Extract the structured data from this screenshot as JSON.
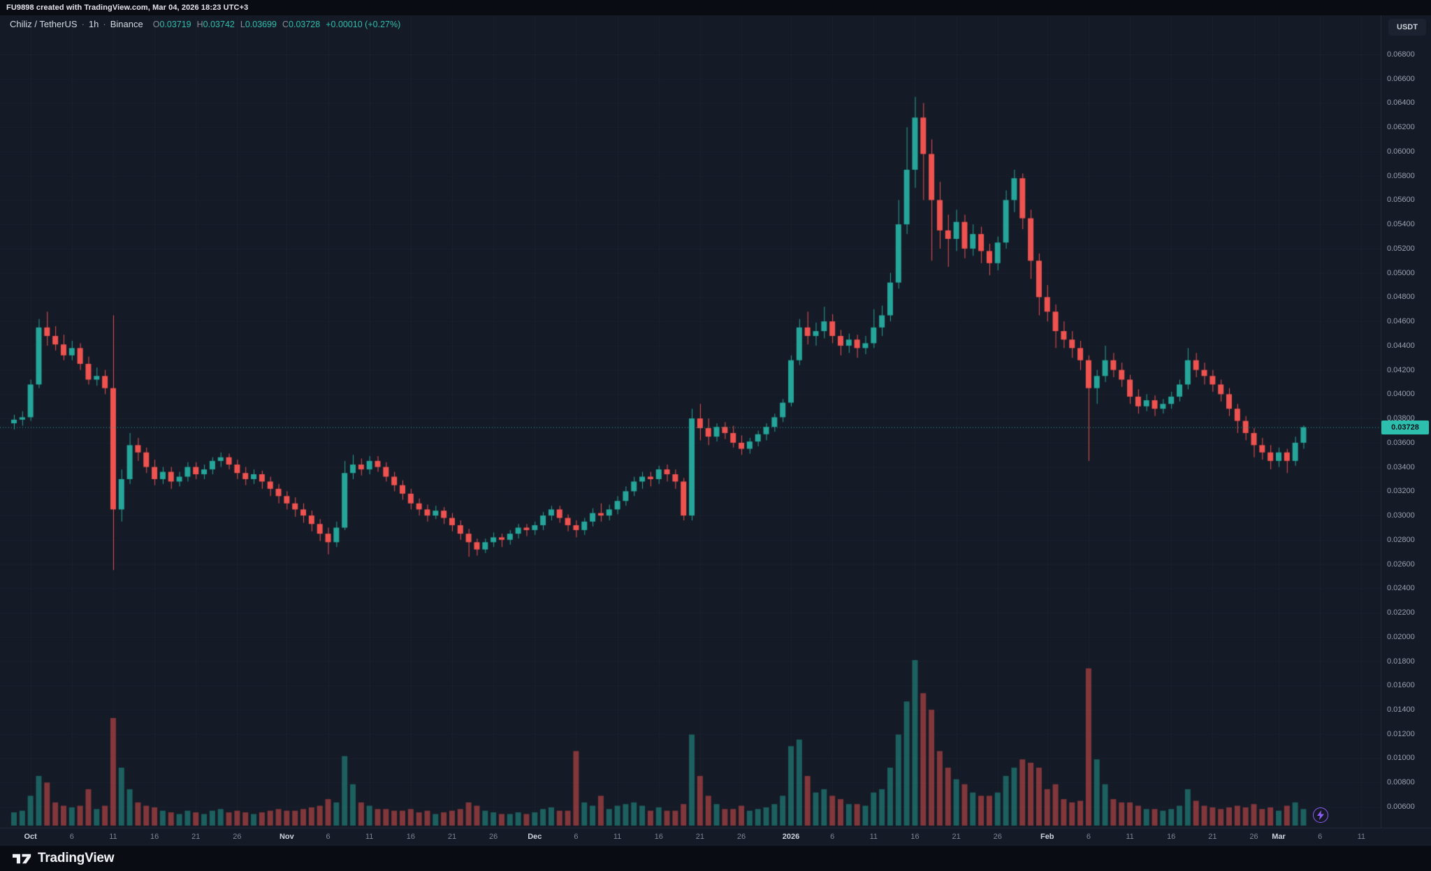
{
  "top_bar": {
    "attribution": "FU9898 created with TradingView.com, Mar 04, 2026 18:23 UTC+3"
  },
  "legend": {
    "symbol": "Chiliz / TetherUS",
    "separator": "·",
    "interval": "1h",
    "exchange": "Binance",
    "ohlc": {
      "o_label": "O",
      "o": "0.03719",
      "h_label": "H",
      "h": "0.03742",
      "l_label": "L",
      "l": "0.03699",
      "c_label": "C",
      "c": "0.03728"
    },
    "change": "+0.00010 (+0.27%)"
  },
  "price_scale": {
    "currency_button": "USDT"
  },
  "footer": {
    "brand": "TradingView"
  },
  "chart_data": {
    "type": "candlestick+volume",
    "symbol": "CHZ/USDT",
    "interval": "1h",
    "exchange": "Binance",
    "last_price": 0.03728,
    "last_price_label": "0.03728",
    "price_axis": {
      "max": 0.068,
      "min": 0.006,
      "step": 0.002,
      "decimals": 5
    },
    "colors": {
      "bg": "#141a26",
      "up": "#26a69a",
      "down": "#ef5350",
      "vol_up": "rgba(38,166,154,0.5)",
      "vol_down": "rgba(239,83,80,0.5)",
      "grid": "rgba(150,160,190,0.055)",
      "last_price_bg": "#2cbfad",
      "last_price_text": "#0b1118",
      "accent_purple": "#8e5cf7"
    },
    "time_axis": [
      {
        "label": "Oct",
        "i": 2,
        "major": true
      },
      {
        "label": "6",
        "i": 7
      },
      {
        "label": "11",
        "i": 12
      },
      {
        "label": "16",
        "i": 17
      },
      {
        "label": "21",
        "i": 22
      },
      {
        "label": "26",
        "i": 27
      },
      {
        "label": "Nov",
        "i": 33,
        "major": true
      },
      {
        "label": "6",
        "i": 38
      },
      {
        "label": "11",
        "i": 43
      },
      {
        "label": "16",
        "i": 48
      },
      {
        "label": "21",
        "i": 53
      },
      {
        "label": "26",
        "i": 58
      },
      {
        "label": "Dec",
        "i": 63,
        "major": true
      },
      {
        "label": "6",
        "i": 68
      },
      {
        "label": "11",
        "i": 73
      },
      {
        "label": "16",
        "i": 78
      },
      {
        "label": "21",
        "i": 83
      },
      {
        "label": "26",
        "i": 88
      },
      {
        "label": "2026",
        "i": 94,
        "major": true
      },
      {
        "label": "6",
        "i": 99
      },
      {
        "label": "11",
        "i": 104
      },
      {
        "label": "16",
        "i": 109
      },
      {
        "label": "21",
        "i": 114
      },
      {
        "label": "26",
        "i": 119
      },
      {
        "label": "Feb",
        "i": 125,
        "major": true
      },
      {
        "label": "6",
        "i": 130
      },
      {
        "label": "11",
        "i": 135
      },
      {
        "label": "16",
        "i": 140
      },
      {
        "label": "21",
        "i": 145
      },
      {
        "label": "26",
        "i": 150
      },
      {
        "label": "Mar",
        "i": 153,
        "major": true
      },
      {
        "label": "6",
        "i": 158
      },
      {
        "label": "11",
        "i": 163
      }
    ],
    "candles": [
      [
        0.0376,
        0.0383,
        0.0371,
        0.0379,
        8
      ],
      [
        0.0379,
        0.0386,
        0.0374,
        0.0381,
        9
      ],
      [
        0.0381,
        0.0412,
        0.0378,
        0.0408,
        18
      ],
      [
        0.0408,
        0.0462,
        0.0405,
        0.0455,
        30
      ],
      [
        0.0455,
        0.0468,
        0.044,
        0.0448,
        26
      ],
      [
        0.0448,
        0.0456,
        0.0436,
        0.0441,
        14
      ],
      [
        0.0441,
        0.0449,
        0.0428,
        0.0432,
        12
      ],
      [
        0.0432,
        0.0444,
        0.0428,
        0.0438,
        11
      ],
      [
        0.0438,
        0.0442,
        0.042,
        0.0425,
        12
      ],
      [
        0.0425,
        0.0431,
        0.0408,
        0.0412,
        22
      ],
      [
        0.0412,
        0.0422,
        0.0407,
        0.0415,
        10
      ],
      [
        0.0415,
        0.042,
        0.04,
        0.0405,
        12
      ],
      [
        0.0405,
        0.0465,
        0.0255,
        0.0305,
        65
      ],
      [
        0.0305,
        0.0338,
        0.0295,
        0.033,
        35
      ],
      [
        0.033,
        0.0368,
        0.0326,
        0.0358,
        22
      ],
      [
        0.0358,
        0.0364,
        0.0345,
        0.0352,
        14
      ],
      [
        0.0352,
        0.0356,
        0.0335,
        0.034,
        12
      ],
      [
        0.034,
        0.0346,
        0.0325,
        0.033,
        11
      ],
      [
        0.033,
        0.034,
        0.0326,
        0.0336,
        9
      ],
      [
        0.0336,
        0.034,
        0.0322,
        0.0328,
        8
      ],
      [
        0.0328,
        0.0336,
        0.0324,
        0.0332,
        7
      ],
      [
        0.0332,
        0.0344,
        0.0328,
        0.034,
        9
      ],
      [
        0.034,
        0.0344,
        0.033,
        0.0334,
        8
      ],
      [
        0.0334,
        0.0342,
        0.033,
        0.0338,
        7
      ],
      [
        0.0338,
        0.0348,
        0.0334,
        0.0345,
        9
      ],
      [
        0.0345,
        0.0352,
        0.034,
        0.0348,
        10
      ],
      [
        0.0348,
        0.0351,
        0.0338,
        0.0342,
        8
      ],
      [
        0.0342,
        0.0346,
        0.033,
        0.0335,
        9
      ],
      [
        0.0335,
        0.034,
        0.0325,
        0.033,
        8
      ],
      [
        0.033,
        0.0338,
        0.0326,
        0.0334,
        7
      ],
      [
        0.0334,
        0.0337,
        0.0322,
        0.0328,
        8
      ],
      [
        0.0328,
        0.0332,
        0.0316,
        0.0322,
        9
      ],
      [
        0.0322,
        0.0326,
        0.031,
        0.0316,
        10
      ],
      [
        0.0316,
        0.032,
        0.0305,
        0.031,
        9
      ],
      [
        0.031,
        0.0315,
        0.0299,
        0.0305,
        9
      ],
      [
        0.0305,
        0.031,
        0.0294,
        0.03,
        10
      ],
      [
        0.03,
        0.0304,
        0.0287,
        0.0293,
        11
      ],
      [
        0.0293,
        0.0297,
        0.0279,
        0.0285,
        12
      ],
      [
        0.0285,
        0.029,
        0.0268,
        0.0278,
        16
      ],
      [
        0.0278,
        0.0295,
        0.0274,
        0.029,
        14
      ],
      [
        0.029,
        0.0345,
        0.0288,
        0.0335,
        42
      ],
      [
        0.0335,
        0.035,
        0.033,
        0.0342,
        25
      ],
      [
        0.0342,
        0.0347,
        0.0333,
        0.0338,
        14
      ],
      [
        0.0338,
        0.0349,
        0.0334,
        0.0345,
        12
      ],
      [
        0.0345,
        0.0349,
        0.0336,
        0.034,
        10
      ],
      [
        0.034,
        0.0344,
        0.0328,
        0.0332,
        10
      ],
      [
        0.0332,
        0.0336,
        0.032,
        0.0325,
        9
      ],
      [
        0.0325,
        0.0329,
        0.0313,
        0.0318,
        9
      ],
      [
        0.0318,
        0.0322,
        0.0305,
        0.031,
        10
      ],
      [
        0.031,
        0.0314,
        0.03,
        0.0305,
        8
      ],
      [
        0.0305,
        0.0309,
        0.0295,
        0.03,
        9
      ],
      [
        0.03,
        0.0308,
        0.0297,
        0.0304,
        7
      ],
      [
        0.0304,
        0.0307,
        0.0293,
        0.0298,
        8
      ],
      [
        0.0298,
        0.0302,
        0.0287,
        0.0292,
        9
      ],
      [
        0.0292,
        0.0296,
        0.028,
        0.0285,
        10
      ],
      [
        0.0285,
        0.0289,
        0.0266,
        0.0278,
        14
      ],
      [
        0.0278,
        0.0281,
        0.0267,
        0.0272,
        12
      ],
      [
        0.0272,
        0.0281,
        0.0269,
        0.0278,
        9
      ],
      [
        0.0278,
        0.0286,
        0.0274,
        0.0282,
        8
      ],
      [
        0.0282,
        0.0285,
        0.0274,
        0.028,
        7
      ],
      [
        0.028,
        0.0288,
        0.0276,
        0.0285,
        7
      ],
      [
        0.0285,
        0.0293,
        0.0281,
        0.029,
        8
      ],
      [
        0.029,
        0.0293,
        0.0283,
        0.0288,
        7
      ],
      [
        0.0288,
        0.0295,
        0.0284,
        0.0292,
        8
      ],
      [
        0.0292,
        0.0303,
        0.0288,
        0.03,
        10
      ],
      [
        0.03,
        0.0308,
        0.0296,
        0.0305,
        11
      ],
      [
        0.0305,
        0.0308,
        0.0294,
        0.0298,
        9
      ],
      [
        0.0298,
        0.0301,
        0.0287,
        0.0292,
        9
      ],
      [
        0.0292,
        0.0296,
        0.0282,
        0.0288,
        45
      ],
      [
        0.0288,
        0.0298,
        0.0284,
        0.0295,
        14
      ],
      [
        0.0295,
        0.0306,
        0.0291,
        0.0302,
        12
      ],
      [
        0.0302,
        0.031,
        0.0295,
        0.03,
        18
      ],
      [
        0.03,
        0.0309,
        0.0296,
        0.0305,
        10
      ],
      [
        0.0305,
        0.0316,
        0.0301,
        0.0312,
        12
      ],
      [
        0.0312,
        0.0324,
        0.0308,
        0.032,
        13
      ],
      [
        0.032,
        0.0332,
        0.0316,
        0.0328,
        14
      ],
      [
        0.0328,
        0.0336,
        0.0322,
        0.0332,
        12
      ],
      [
        0.0332,
        0.0336,
        0.0324,
        0.033,
        9
      ],
      [
        0.033,
        0.0341,
        0.0326,
        0.0338,
        11
      ],
      [
        0.0338,
        0.0342,
        0.0328,
        0.0334,
        9
      ],
      [
        0.0334,
        0.0338,
        0.0322,
        0.0328,
        9
      ],
      [
        0.0328,
        0.0331,
        0.0296,
        0.03,
        13
      ],
      [
        0.03,
        0.0388,
        0.0296,
        0.038,
        55
      ],
      [
        0.038,
        0.0392,
        0.0362,
        0.0372,
        30
      ],
      [
        0.0372,
        0.038,
        0.0358,
        0.0365,
        18
      ],
      [
        0.0365,
        0.0376,
        0.0361,
        0.0373,
        13
      ],
      [
        0.0373,
        0.0377,
        0.0363,
        0.0368,
        10
      ],
      [
        0.0368,
        0.0374,
        0.0356,
        0.036,
        10
      ],
      [
        0.036,
        0.0366,
        0.035,
        0.0355,
        12
      ],
      [
        0.0355,
        0.0364,
        0.0351,
        0.0361,
        9
      ],
      [
        0.0361,
        0.037,
        0.0357,
        0.0367,
        10
      ],
      [
        0.0367,
        0.0376,
        0.0362,
        0.0373,
        11
      ],
      [
        0.0373,
        0.0384,
        0.0369,
        0.0381,
        13
      ],
      [
        0.0381,
        0.0396,
        0.0377,
        0.0393,
        18
      ],
      [
        0.0393,
        0.0432,
        0.039,
        0.0428,
        48
      ],
      [
        0.0428,
        0.0462,
        0.0424,
        0.0455,
        52
      ],
      [
        0.0455,
        0.0468,
        0.0441,
        0.0448,
        30
      ],
      [
        0.0448,
        0.0459,
        0.044,
        0.0452,
        20
      ],
      [
        0.0452,
        0.0472,
        0.0446,
        0.046,
        22
      ],
      [
        0.046,
        0.0466,
        0.0442,
        0.0448,
        18
      ],
      [
        0.0448,
        0.0453,
        0.0432,
        0.044,
        16
      ],
      [
        0.044,
        0.045,
        0.0434,
        0.0445,
        13
      ],
      [
        0.0445,
        0.0449,
        0.043,
        0.0438,
        13
      ],
      [
        0.0438,
        0.0448,
        0.0433,
        0.0442,
        12
      ],
      [
        0.0442,
        0.047,
        0.0438,
        0.0455,
        20
      ],
      [
        0.0455,
        0.0473,
        0.0448,
        0.0465,
        22
      ],
      [
        0.0465,
        0.05,
        0.046,
        0.0492,
        35
      ],
      [
        0.0492,
        0.056,
        0.0487,
        0.054,
        55
      ],
      [
        0.054,
        0.062,
        0.0532,
        0.0585,
        75
      ],
      [
        0.0585,
        0.0645,
        0.057,
        0.0628,
        100
      ],
      [
        0.0628,
        0.064,
        0.056,
        0.0598,
        80
      ],
      [
        0.0598,
        0.061,
        0.051,
        0.056,
        70
      ],
      [
        0.056,
        0.0575,
        0.052,
        0.0535,
        45
      ],
      [
        0.0535,
        0.0548,
        0.0505,
        0.0528,
        35
      ],
      [
        0.0528,
        0.0552,
        0.0518,
        0.0542,
        28
      ],
      [
        0.0542,
        0.0548,
        0.0512,
        0.052,
        25
      ],
      [
        0.052,
        0.054,
        0.0514,
        0.0532,
        20
      ],
      [
        0.0532,
        0.0538,
        0.0508,
        0.0518,
        18
      ],
      [
        0.0518,
        0.0524,
        0.0498,
        0.0508,
        18
      ],
      [
        0.0508,
        0.053,
        0.0502,
        0.0525,
        20
      ],
      [
        0.0525,
        0.0568,
        0.052,
        0.056,
        30
      ],
      [
        0.056,
        0.0585,
        0.055,
        0.0578,
        35
      ],
      [
        0.0578,
        0.0582,
        0.0536,
        0.0545,
        40
      ],
      [
        0.0545,
        0.0552,
        0.0495,
        0.051,
        38
      ],
      [
        0.051,
        0.0516,
        0.0465,
        0.048,
        35
      ],
      [
        0.048,
        0.049,
        0.046,
        0.0468,
        22
      ],
      [
        0.0468,
        0.0474,
        0.0438,
        0.0452,
        25
      ],
      [
        0.0452,
        0.046,
        0.0438,
        0.0445,
        16
      ],
      [
        0.0445,
        0.0452,
        0.043,
        0.0438,
        14
      ],
      [
        0.0438,
        0.0444,
        0.042,
        0.0428,
        15
      ],
      [
        0.0428,
        0.0432,
        0.0345,
        0.0405,
        95
      ],
      [
        0.0405,
        0.042,
        0.0392,
        0.0415,
        40
      ],
      [
        0.0415,
        0.044,
        0.041,
        0.0428,
        25
      ],
      [
        0.0428,
        0.0434,
        0.0414,
        0.042,
        16
      ],
      [
        0.042,
        0.0426,
        0.0406,
        0.0412,
        14
      ],
      [
        0.0412,
        0.0416,
        0.0392,
        0.0398,
        14
      ],
      [
        0.0398,
        0.0404,
        0.0384,
        0.039,
        12
      ],
      [
        0.039,
        0.04,
        0.0386,
        0.0395,
        10
      ],
      [
        0.0395,
        0.0399,
        0.0382,
        0.0388,
        10
      ],
      [
        0.0388,
        0.0396,
        0.0384,
        0.0392,
        9
      ],
      [
        0.0392,
        0.0402,
        0.0388,
        0.0398,
        10
      ],
      [
        0.0398,
        0.0412,
        0.0394,
        0.0408,
        12
      ],
      [
        0.0408,
        0.0438,
        0.0404,
        0.0428,
        22
      ],
      [
        0.0428,
        0.0434,
        0.0414,
        0.042,
        15
      ],
      [
        0.042,
        0.0426,
        0.0408,
        0.0415,
        12
      ],
      [
        0.0415,
        0.042,
        0.0402,
        0.0408,
        11
      ],
      [
        0.0408,
        0.0412,
        0.0394,
        0.04,
        10
      ],
      [
        0.04,
        0.0405,
        0.0382,
        0.0388,
        11
      ],
      [
        0.0388,
        0.0392,
        0.0368,
        0.0378,
        12
      ],
      [
        0.0378,
        0.0382,
        0.0362,
        0.0368,
        11
      ],
      [
        0.0368,
        0.0372,
        0.0348,
        0.0358,
        13
      ],
      [
        0.0358,
        0.0364,
        0.0346,
        0.0352,
        10
      ],
      [
        0.0352,
        0.0358,
        0.0338,
        0.0345,
        11
      ],
      [
        0.0345,
        0.0356,
        0.034,
        0.0352,
        9
      ],
      [
        0.0352,
        0.0355,
        0.0335,
        0.0345,
        12
      ],
      [
        0.0345,
        0.0365,
        0.0341,
        0.036,
        14
      ],
      [
        0.036,
        0.03742,
        0.0355,
        0.03728,
        10
      ]
    ]
  }
}
